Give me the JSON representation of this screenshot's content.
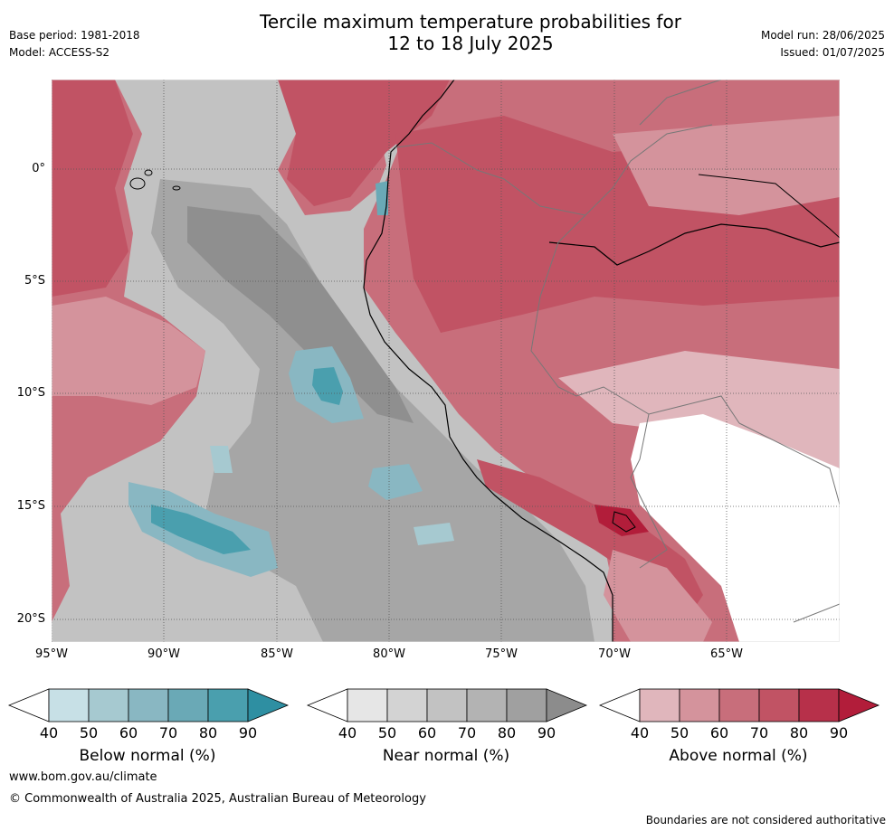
{
  "header": {
    "title_line1": "Tercile maximum temperature probabilities for",
    "title_line2": "12 to 18 July 2025",
    "base_period": "Base period: 1981-2018",
    "model": "Model: ACCESS-S2",
    "model_run": "Model run: 28/06/2025",
    "issued": "Issued: 01/07/2025"
  },
  "map": {
    "lat_labels": [
      "0°",
      "5°S",
      "10°S",
      "15°S",
      "20°S"
    ],
    "lon_labels": [
      "95°W",
      "90°W",
      "85°W",
      "80°W",
      "75°W",
      "70°W",
      "65°W"
    ]
  },
  "legend": {
    "below": {
      "label": "Below normal (%)",
      "ticks": [
        "40",
        "50",
        "60",
        "70",
        "80",
        "90"
      ],
      "colors": [
        "#ffffff",
        "#c7e0e6",
        "#a6c9d0",
        "#89b7c2",
        "#6aa9b6",
        "#4a9fae",
        "#2e8fa2"
      ]
    },
    "near": {
      "label": "Near normal (%)",
      "ticks": [
        "40",
        "50",
        "60",
        "70",
        "80",
        "90"
      ],
      "colors": [
        "#ffffff",
        "#e6e6e6",
        "#d3d3d3",
        "#c2c2c2",
        "#b3b3b3",
        "#a0a0a0",
        "#8c8c8c"
      ]
    },
    "above": {
      "label": "Above normal (%)",
      "ticks": [
        "40",
        "50",
        "60",
        "70",
        "80",
        "90"
      ],
      "colors": [
        "#ffffff",
        "#e0b6bc",
        "#d4939c",
        "#c86e7b",
        "#c15364",
        "#b7304a",
        "#b21d3a"
      ]
    }
  },
  "footer": {
    "website": "www.bom.gov.au/climate",
    "copyright": "© Commonwealth of Australia 2025, Australian Bureau of Meteorology",
    "disclaimer": "Boundaries are not considered authoritative"
  }
}
